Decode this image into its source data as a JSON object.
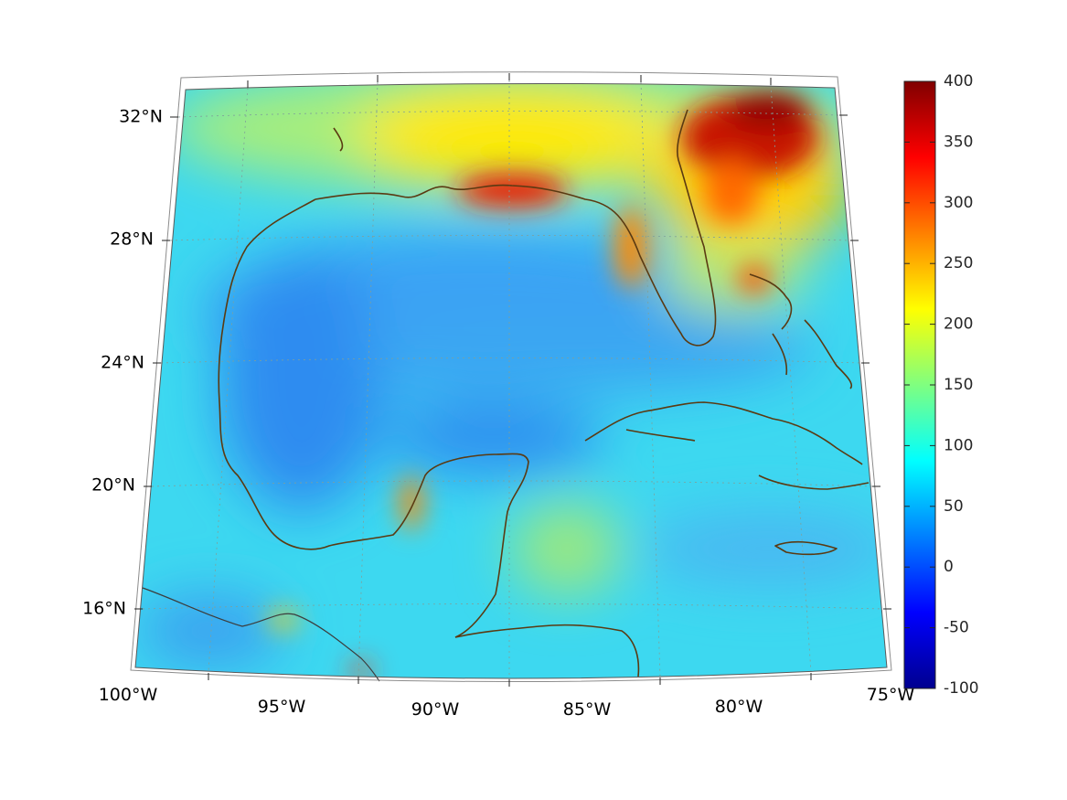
{
  "map": {
    "lon_labels": [
      "100°W",
      "95°W",
      "90°W",
      "85°W",
      "80°W",
      "75°W"
    ],
    "lat_labels": [
      "32°N",
      "28°N",
      "24°N",
      "20°N",
      "16°N"
    ],
    "colors": {
      "coastline": "#5a3a12",
      "border": "#3c3c3c",
      "graticule": "#7fa09a"
    }
  },
  "colorbar": {
    "tick_labels": [
      "400",
      "350",
      "300",
      "250",
      "200",
      "150",
      "100",
      "50",
      "0",
      "-50",
      "-100"
    ],
    "range": [
      -100,
      400
    ],
    "colormap": "jet"
  }
}
